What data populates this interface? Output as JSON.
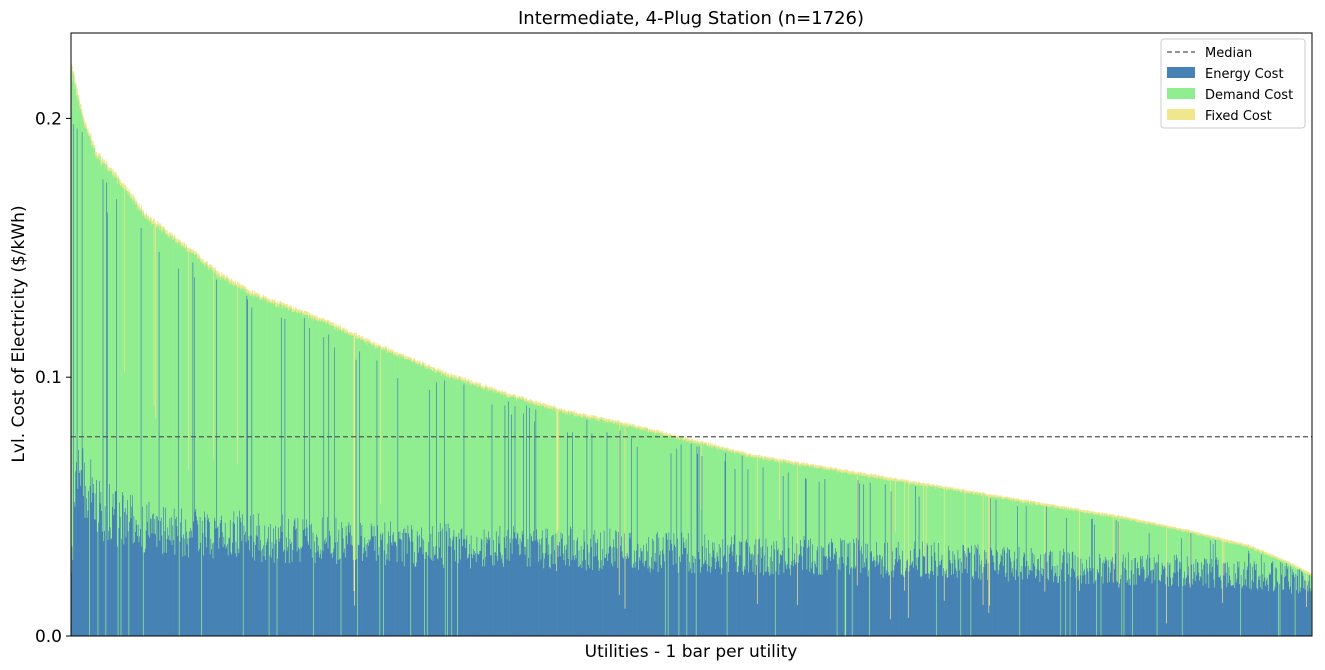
{
  "chart_data": {
    "type": "bar",
    "stacked": true,
    "title": "Intermediate, 4-Plug Station (n=1726)",
    "xlabel": "Utilities - 1 bar per utility",
    "ylabel": "Lvl. Cost of Electricity ($/kWh)",
    "n": 1726,
    "ylim": [
      0,
      0.233
    ],
    "yticks": [
      0.0,
      0.1,
      0.2
    ],
    "ytick_labels": [
      "0.0",
      "0.1",
      "0.2"
    ],
    "median": 0.077,
    "grid": false,
    "legend_position": "top-right",
    "legend": [
      "Median",
      "Energy Cost",
      "Demand Cost",
      "Fixed Cost"
    ],
    "series": [
      {
        "name": "Energy Cost",
        "color": "#4682b4"
      },
      {
        "name": "Demand Cost",
        "color": "#90ee90"
      },
      {
        "name": "Fixed Cost",
        "color": "#f0e68c"
      }
    ],
    "median_color": "#555555",
    "total_profile": {
      "x_fraction": [
        0.0,
        0.004,
        0.01,
        0.02,
        0.04,
        0.06,
        0.09,
        0.12,
        0.15,
        0.2,
        0.25,
        0.3,
        0.35,
        0.4,
        0.45,
        0.5,
        0.55,
        0.6,
        0.65,
        0.7,
        0.75,
        0.8,
        0.85,
        0.9,
        0.95,
        0.98,
        1.0
      ],
      "total": [
        0.221,
        0.212,
        0.2,
        0.187,
        0.176,
        0.163,
        0.152,
        0.14,
        0.132,
        0.123,
        0.112,
        0.102,
        0.094,
        0.087,
        0.082,
        0.076,
        0.07,
        0.066,
        0.062,
        0.058,
        0.054,
        0.05,
        0.046,
        0.041,
        0.035,
        0.029,
        0.024
      ],
      "energy_typical": [
        0.024,
        0.06,
        0.062,
        0.05,
        0.045,
        0.042,
        0.04,
        0.04,
        0.038,
        0.037,
        0.036,
        0.035,
        0.034,
        0.034,
        0.033,
        0.032,
        0.031,
        0.031,
        0.03,
        0.029,
        0.028,
        0.027,
        0.026,
        0.025,
        0.024,
        0.022,
        0.02
      ],
      "fixed_typical": [
        0.002,
        0.0018,
        0.0016,
        0.0015,
        0.0014,
        0.0013,
        0.0012,
        0.0012,
        0.0011,
        0.0011,
        0.001,
        0.001,
        0.001,
        0.001,
        0.0009,
        0.0009,
        0.0009,
        0.0009,
        0.0009,
        0.0008,
        0.0008,
        0.0008,
        0.0008,
        0.0008,
        0.0008,
        0.0008,
        0.0008
      ]
    }
  }
}
